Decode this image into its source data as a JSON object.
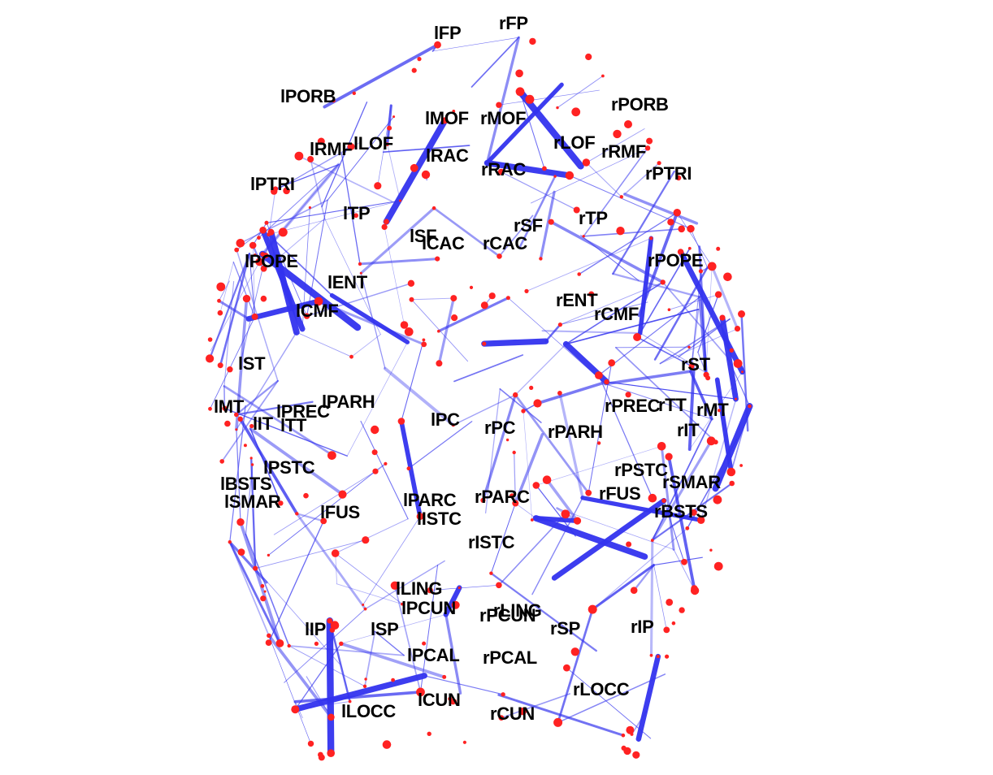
{
  "colors": {
    "background": "#ffffff",
    "edge": "#3333ee",
    "node": "#ff2222",
    "label": "#000000"
  },
  "labels": [
    "lFP",
    "rFP",
    "lPORB",
    "rPORB",
    "lMOF",
    "rMOF",
    "lRMF",
    "lLOF",
    "lRAC",
    "rLOF",
    "rRMF",
    "rRAC",
    "lPTRI",
    "rPTRI",
    "lTP",
    "rTP",
    "lSF",
    "lCAC",
    "rCAC",
    "rSF",
    "lPOPE",
    "rPOPE",
    "lENT",
    "rENT",
    "lCMF",
    "rCMF",
    "lST",
    "rST",
    "lPARH",
    "lMT",
    "lPREC",
    "lIT",
    "lTT",
    "lPC",
    "rPC",
    "rPARH",
    "rPREC",
    "rTT",
    "rMT",
    "rIT",
    "lPSTC",
    "rPSTC",
    "lBSTS",
    "lSMAR",
    "rSMAR",
    "lFUS",
    "lPARC",
    "rPARC",
    "rFUS",
    "rBSTS",
    "lISTC",
    "rISTC",
    "lLING",
    "lPCUN",
    "rPCUN",
    "rLING",
    "lIP",
    "lSP",
    "rSP",
    "rIP",
    "lPCAL",
    "rPCAL",
    "rLOCC",
    "lLOCC",
    "lCUN",
    "rCUN"
  ]
}
